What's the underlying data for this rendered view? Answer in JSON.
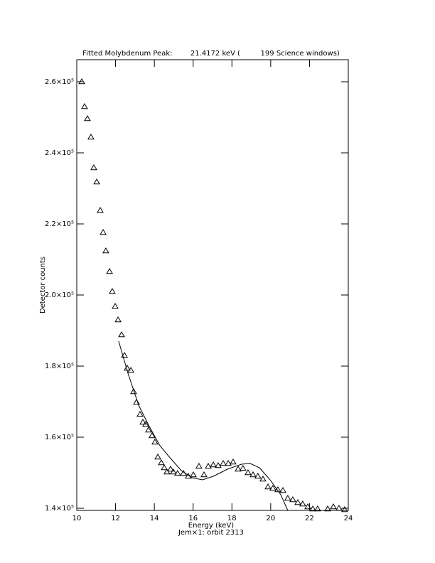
{
  "chart_data": {
    "type": "scatter",
    "title": "Fitted Molybdenum Peak:        21.4172 keV (         199 Science windows)",
    "x_label": "Energy (keV)",
    "subtitle": "Jem×1: orbit 2313",
    "y_label": "Detector counts",
    "xlim": [
      10,
      24
    ],
    "xticks": [
      10,
      12,
      14,
      16,
      18,
      20,
      22,
      24
    ],
    "ylim": [
      139400,
      266200
    ],
    "yticks": [
      {
        "value": 140000,
        "label": "1.4×10⁵"
      },
      {
        "value": 160000,
        "label": "1.6×10⁵"
      },
      {
        "value": 180000,
        "label": "1.8×10⁵"
      },
      {
        "value": 200000,
        "label": "2.0×10⁵"
      },
      {
        "value": 220000,
        "label": "2.2×10⁵"
      },
      {
        "value": 240000,
        "label": "2.4×10⁵"
      },
      {
        "value": 260000,
        "label": "2.6×10⁵"
      }
    ],
    "series": [
      {
        "type": "scatter",
        "marker": "triangle",
        "color": "#000000",
        "x": [
          10.26,
          10.4,
          10.55,
          10.73,
          10.88,
          11.03,
          11.21,
          11.36,
          11.5,
          11.69,
          11.83,
          11.98,
          12.13,
          12.31,
          12.46,
          12.6,
          12.79,
          12.93,
          13.08,
          13.26,
          13.41,
          13.55,
          13.7,
          13.88,
          14.03,
          14.18,
          14.36,
          14.51,
          14.65,
          14.84,
          14.98,
          15.2,
          15.5,
          15.75,
          16.01,
          16.3,
          16.56,
          16.78,
          17.04,
          17.29,
          17.55,
          17.81,
          18.06,
          18.32,
          18.57,
          18.83,
          19.09,
          19.34,
          19.6,
          19.86,
          20.11,
          20.37,
          20.63,
          20.88,
          21.14,
          21.4,
          21.65,
          21.91,
          22.17,
          22.42,
          22.94,
          23.23,
          23.52,
          23.81
        ],
        "values": [
          260000,
          253000,
          249600,
          244400,
          235800,
          231800,
          223800,
          217600,
          212400,
          206600,
          201000,
          196800,
          193000,
          188800,
          183000,
          179400,
          178800,
          172800,
          169800,
          166400,
          164200,
          163600,
          162000,
          160400,
          158600,
          154400,
          152800,
          151400,
          150200,
          151000,
          150200,
          149800,
          149800,
          149000,
          149400,
          151800,
          149400,
          151800,
          152200,
          152000,
          152600,
          152600,
          153000,
          151000,
          151200,
          150000,
          149400,
          149000,
          148200,
          146000,
          145600,
          145200,
          145000,
          142800,
          142400,
          141600,
          141200,
          140400,
          139800,
          139800,
          139800,
          140400,
          140000,
          139600
        ]
      },
      {
        "type": "line",
        "color": "#000000",
        "x": [
          12.16,
          12.64,
          13.19,
          13.74,
          14.29,
          14.84,
          15.39,
          15.94,
          16.49,
          17.04,
          17.77,
          18.5,
          18.94,
          19.42,
          19.97,
          20.52,
          20.88
        ],
        "values": [
          187000,
          178000,
          169000,
          163000,
          157600,
          154000,
          150600,
          148600,
          148000,
          149000,
          151000,
          152400,
          152600,
          151400,
          148000,
          143800,
          139400
        ]
      }
    ]
  }
}
